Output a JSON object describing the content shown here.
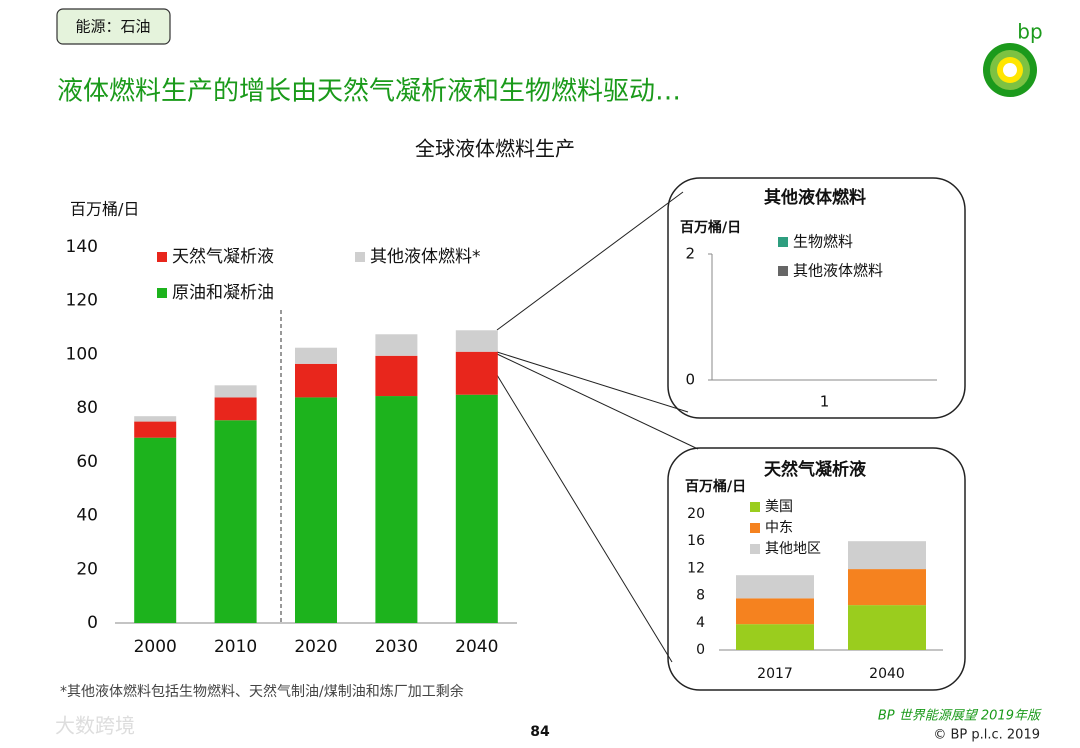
{
  "tag": "能源：石油",
  "headline": "液体燃料生产的增长由天然气凝析液和生物燃料驱动…",
  "logo": "bp",
  "footnote": "*其他液体燃料包括生物燃料、天然气制油/煤制油和炼厂加工剩余",
  "page_number": "84",
  "footer": "BP 世界能源展望 2019年版",
  "copyright": "© BP p.l.c. 2019",
  "watermark": "大数跨境",
  "chart_data": [
    {
      "type": "bar",
      "stacked": true,
      "title": "全球液体燃料生产",
      "y_label": "百万桶/日",
      "categories": [
        "2000",
        "2010",
        "2020",
        "2030",
        "2040"
      ],
      "series": [
        {
          "name": "原油和凝析油",
          "color": "#1db31d",
          "values": [
            69,
            75.5,
            84,
            84.5,
            85
          ]
        },
        {
          "name": "天然气凝析液",
          "color": "#e8261c",
          "values": [
            6,
            8.5,
            12.5,
            15,
            16
          ]
        },
        {
          "name": "其他液体燃料*",
          "color": "#cfcfcf",
          "values": [
            2,
            4.5,
            6,
            8,
            8
          ]
        }
      ],
      "ylim": [
        0,
        140
      ],
      "yticks": [
        0,
        20,
        40,
        60,
        80,
        100,
        120,
        140
      ]
    },
    {
      "type": "bar",
      "stacked": true,
      "title": "其他液体燃料",
      "y_label": "百万桶/日",
      "categories": [
        "1"
      ],
      "series": [
        {
          "name": "生物燃料",
          "color": "#2e9e7f",
          "values": [
            null
          ]
        },
        {
          "name": "其他液体燃料",
          "color": "#666666",
          "values": [
            null
          ]
        }
      ],
      "ylim": [
        0,
        2
      ],
      "yticks": [
        0,
        2
      ]
    },
    {
      "type": "bar",
      "stacked": true,
      "title": "天然气凝析液",
      "y_label": "百万桶/日",
      "categories": [
        "2017",
        "2040"
      ],
      "series": [
        {
          "name": "美国",
          "color": "#9acd1e",
          "values": [
            3.8,
            6.6
          ]
        },
        {
          "name": "中东",
          "color": "#f5821f",
          "values": [
            3.8,
            5.3
          ]
        },
        {
          "name": "其他地区",
          "color": "#cfcfcf",
          "values": [
            3.4,
            4.1
          ]
        }
      ],
      "ylim": [
        0,
        20
      ],
      "yticks": [
        0,
        4,
        8,
        12,
        16,
        20
      ]
    }
  ]
}
